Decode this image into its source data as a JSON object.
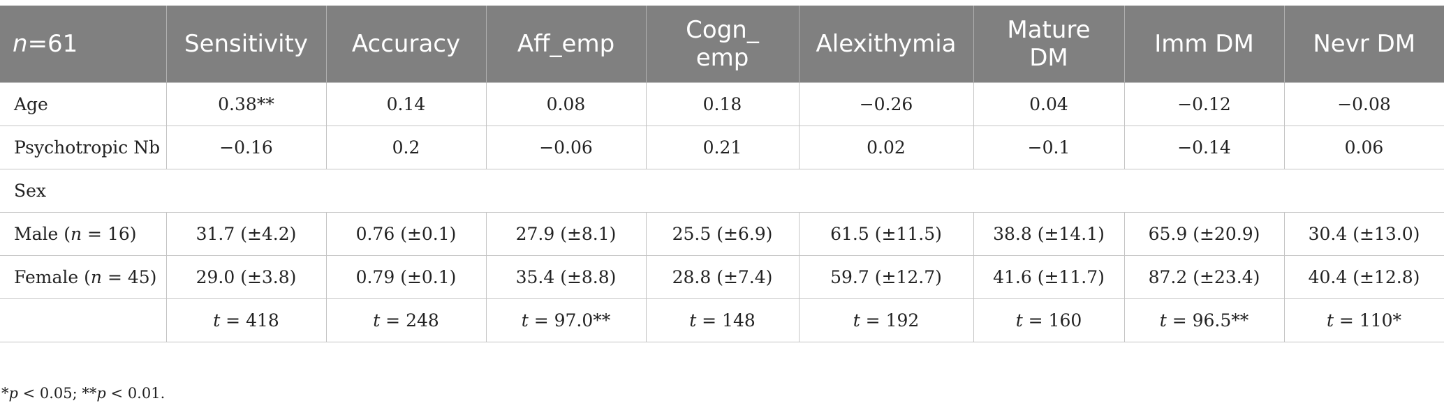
{
  "table": {
    "header": {
      "first_var": "n",
      "first_rest": "=61",
      "columns": [
        "Sensitivity",
        "Accuracy",
        "Aff_emp",
        "Cogn_\nemp",
        "Alexithymia",
        "Mature\nDM",
        "Imm DM",
        "Nevr DM"
      ]
    },
    "rows": {
      "age": {
        "label": "Age",
        "values": [
          "0.38**",
          "0.14",
          "0.08",
          "0.18",
          "−0.26",
          "0.04",
          "−0.12",
          "−0.08"
        ]
      },
      "psychotropic": {
        "label": "Psychotropic Nb",
        "values": [
          "−0.16",
          "0.2",
          "−0.06",
          "0.21",
          "0.02",
          "−0.1",
          "−0.14",
          "0.06"
        ]
      },
      "sex": {
        "label": "Sex"
      },
      "male": {
        "label_pre": "Male (",
        "label_var": "n",
        "label_post": " = 16)",
        "values": [
          "31.7 (±4.2)",
          "0.76 (±0.1)",
          "27.9 (±8.1)",
          "25.5 (±6.9)",
          "61.5 (±11.5)",
          "38.8 (±14.1)",
          "65.9 (±20.9)",
          "30.4 (±13.0)"
        ]
      },
      "female": {
        "label_pre": "Female (",
        "label_var": "n",
        "label_post": " = 45)",
        "values": [
          "29.0 (±3.8)",
          "0.79 (±0.1)",
          "35.4 (±8.8)",
          "28.8 (±7.4)",
          "59.7 (±12.7)",
          "41.6 (±11.7)",
          "87.2 (±23.4)",
          "40.4 (±12.8)"
        ]
      },
      "ttest": {
        "label": "",
        "var": "t",
        "values": [
          " = 418",
          " = 248",
          " = 97.0**",
          " = 148",
          " = 192",
          " = 160",
          " = 96.5**",
          " = 110*"
        ]
      }
    }
  },
  "footnote": {
    "star1": "*",
    "p1": "p",
    "text1": " < 0.05; **",
    "p2": "p",
    "text2": " < 0.01."
  }
}
